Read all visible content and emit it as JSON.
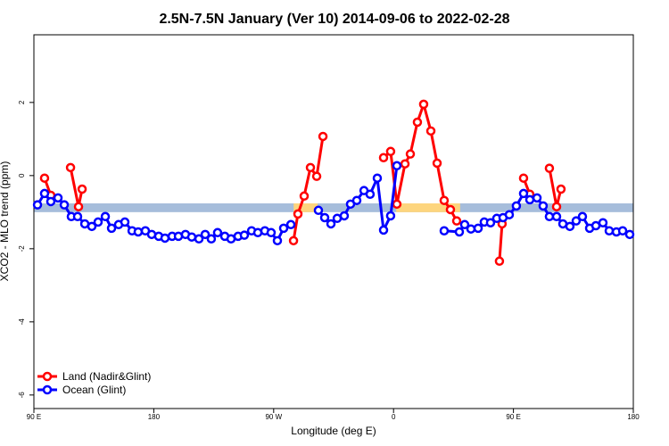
{
  "chart_data": {
    "type": "line",
    "title": "2.5N-7.5N January (Ver 10)   2014-09-06 to 2022-02-28",
    "x_label": "Longitude (deg E)",
    "y_label": "XCO2 - MLO trend (ppm)",
    "xlim": [
      90,
      540
    ],
    "ylim": [
      -6.37,
      3.85
    ],
    "xticks": [
      {
        "value": 90,
        "label": "90 E"
      },
      180,
      {
        "value": 270,
        "label": "90 W"
      },
      {
        "value": 360,
        "label": "0"
      },
      {
        "value": 450,
        "label": "90 E"
      },
      {
        "value": 540,
        "label": "180"
      }
    ],
    "yticks": [
      -6,
      -4,
      -2,
      0,
      2
    ],
    "legend": "bottom-left",
    "bands": [
      {
        "color": "#a6bddb",
        "x": [
          90,
          540
        ],
        "low": -1.0,
        "high": -0.76
      },
      {
        "color": "#fdd57e",
        "x": [
          285,
          303
        ],
        "low": -1.0,
        "high": -0.76
      },
      {
        "color": "#fdd57e",
        "x": [
          362,
          410
        ],
        "low": -1.0,
        "high": -0.76
      }
    ],
    "series": [
      {
        "name": "Land (Nadir&Glint)",
        "color": "#ff0000",
        "x": [
          98,
          102.7,
          null,
          117.5,
          123.5,
          126.2,
          null,
          284.9,
          288.2,
          292.9,
          297.6,
          302.3,
          307,
          null,
          352.5,
          357.8,
          362.5,
          368.6,
          372.6,
          377.9,
          382.6,
          388,
          392.7,
          398,
          402.7,
          407.4,
          null,
          439.5,
          441.5,
          null,
          457.6,
          462.3,
          null,
          477,
          482.4,
          485.7
        ],
        "values": [
          -0.07,
          -0.54,
          null,
          0.22,
          -0.85,
          -0.37,
          null,
          -1.78,
          -1.05,
          -0.56,
          0.22,
          -0.02,
          1.07,
          null,
          0.49,
          0.66,
          -0.78,
          0.32,
          0.59,
          1.46,
          1.95,
          1.22,
          0.34,
          -0.68,
          -0.93,
          -1.24,
          null,
          -2.34,
          -1.32,
          null,
          -0.07,
          -0.51,
          null,
          0.2,
          -0.85,
          -0.37
        ]
      },
      {
        "name": "Ocean (Glint)",
        "color": "#0000ff",
        "x": [
          92.7,
          98,
          102.7,
          108.1,
          112.8,
          118.1,
          122.8,
          128.2,
          133.5,
          138.2,
          143.6,
          148.3,
          153.6,
          158.3,
          163.7,
          168.3,
          173.7,
          178.4,
          183.7,
          188.4,
          193.8,
          198.5,
          203.8,
          208.5,
          213.9,
          218.6,
          223.2,
          227.9,
          233.3,
          238,
          243.3,
          248,
          253.4,
          258.1,
          263.4,
          268.1,
          272.8,
          277.5,
          282.9,
          null,
          303.6,
          308.3,
          313,
          317.7,
          323,
          327.7,
          332.4,
          337.8,
          342.4,
          347.8,
          352.5,
          357.8,
          362.5,
          null,
          398,
          409.4,
          413.4,
          418.1,
          423.5,
          428.1,
          432.8,
          437.5,
          442.2,
          446.9,
          452.2,
          457.6,
          462.3,
          467.7,
          472.3,
          477,
          482.4,
          487.1,
          492.4,
          497.1,
          501.8,
          507.2,
          511.9,
          517.2,
          521.9,
          527.3,
          532,
          537.3
        ],
        "values": [
          -0.8,
          -0.49,
          -0.71,
          -0.61,
          -0.8,
          -1.12,
          -1.12,
          -1.32,
          -1.39,
          -1.27,
          -1.12,
          -1.44,
          -1.34,
          -1.27,
          -1.51,
          -1.54,
          -1.51,
          -1.61,
          -1.66,
          -1.71,
          -1.66,
          -1.66,
          -1.61,
          -1.68,
          -1.73,
          -1.61,
          -1.73,
          -1.56,
          -1.66,
          -1.73,
          -1.66,
          -1.63,
          -1.51,
          -1.56,
          -1.51,
          -1.56,
          -1.78,
          -1.44,
          -1.34,
          null,
          -0.95,
          -1.15,
          -1.32,
          -1.17,
          -1.1,
          -0.78,
          -0.68,
          -0.41,
          -0.51,
          -0.07,
          -1.49,
          -1.1,
          0.27,
          null,
          -1.51,
          -1.54,
          -1.34,
          -1.46,
          -1.44,
          -1.27,
          -1.29,
          -1.17,
          -1.15,
          -1.07,
          -0.83,
          -0.49,
          -0.66,
          -0.61,
          -0.83,
          -1.12,
          -1.12,
          -1.32,
          -1.39,
          -1.24,
          -1.12,
          -1.44,
          -1.37,
          -1.29,
          -1.51,
          -1.54,
          -1.51,
          -1.61
        ]
      }
    ]
  }
}
